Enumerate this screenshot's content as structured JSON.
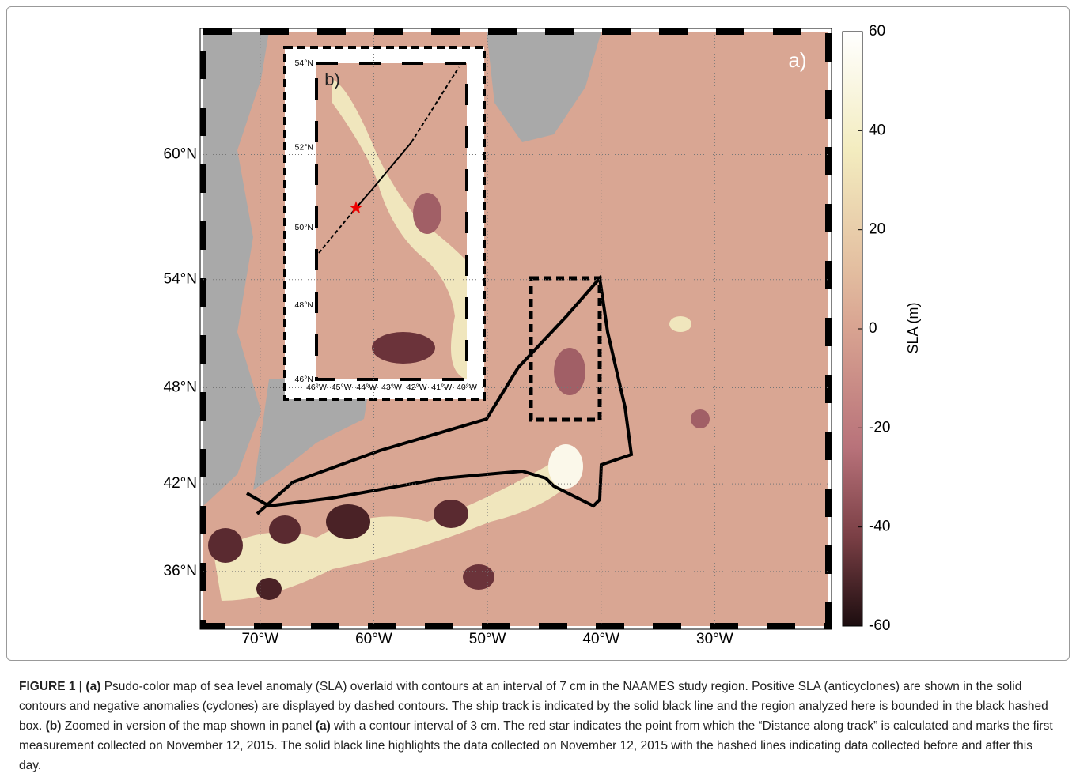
{
  "map": {
    "panel_label": "a)",
    "xlim": [
      -75,
      -20
    ],
    "ylim": [
      32,
      65
    ],
    "lat_ticks": [
      {
        "value": 60,
        "label": "60°N"
      },
      {
        "value": 54,
        "label": "54°N"
      },
      {
        "value": 48,
        "label": "48°N"
      },
      {
        "value": 42,
        "label": "42°N"
      },
      {
        "value": 36,
        "label": "36°N"
      }
    ],
    "lon_ticks": [
      {
        "value": -70,
        "label": "70°W"
      },
      {
        "value": -60,
        "label": "60°W"
      },
      {
        "value": -50,
        "label": "50°W"
      },
      {
        "value": -40,
        "label": "40°W"
      },
      {
        "value": -30,
        "label": "30°W"
      }
    ]
  },
  "inset": {
    "panel_label": "b)",
    "xlim": [
      -46,
      -40
    ],
    "ylim": [
      46,
      54
    ],
    "lat_ticks": [
      {
        "value": 54,
        "label": "54°N"
      },
      {
        "value": 52,
        "label": "52°N"
      },
      {
        "value": 50,
        "label": "50°N"
      },
      {
        "value": 48,
        "label": "48°N"
      },
      {
        "value": 46,
        "label": "46°N"
      }
    ],
    "lon_ticks": [
      {
        "value": -46,
        "label": "46°W"
      },
      {
        "value": -45,
        "label": "45°W"
      },
      {
        "value": -44,
        "label": "44°W"
      },
      {
        "value": -43,
        "label": "43°W"
      },
      {
        "value": -42,
        "label": "42°W"
      },
      {
        "value": -41,
        "label": "41°W"
      },
      {
        "value": -40,
        "label": "40°W"
      }
    ]
  },
  "colorbar": {
    "label": "SLA (m)",
    "lim": [
      -60,
      60
    ],
    "ticks": [
      60,
      40,
      20,
      0,
      -20,
      -40,
      -60
    ]
  },
  "caption": [
    {
      "text": "FIGURE 1 | (a)",
      "bold": true
    },
    {
      "text": " Psudo-color map of sea level anomaly (SLA) overlaid with contours at an interval of 7 cm in the NAAMES study region. Positive SLA (anticyclones) are shown in the solid contours and negative anomalies (cyclones) are displayed by dashed contours. The ship track is indicated by the solid black line and the region analyzed here is bounded in the black hashed box. ",
      "bold": false
    },
    {
      "text": "(b)",
      "bold": true
    },
    {
      "text": " Zoomed in version of the map shown in panel ",
      "bold": false
    },
    {
      "text": "(a)",
      "bold": true
    },
    {
      "text": " with a contour interval of 3 cm. The red star indicates the point from which the “Distance along track” is calculated and marks the first measurement collected on November 12, 2015. The solid black line highlights the data collected on November 12, 2015 with the hashed lines indicating data collected before and after this day.",
      "bold": false
    }
  ]
}
